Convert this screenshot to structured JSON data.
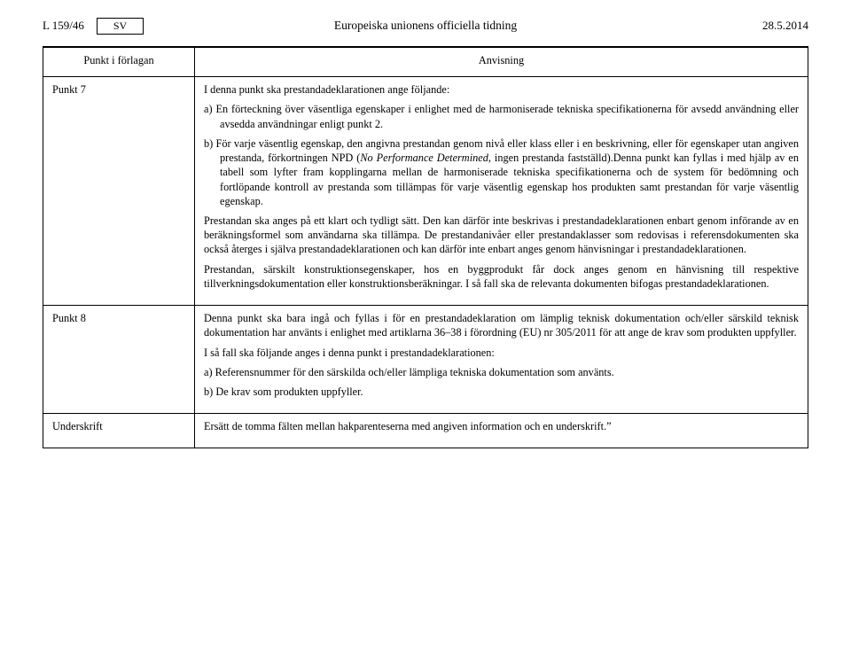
{
  "header": {
    "page_ref": "L 159/46",
    "lang": "SV",
    "journal": "Europeiska unionens officiella tidning",
    "date": "28.5.2014"
  },
  "table": {
    "col1_header": "Punkt i förlagan",
    "col2_header": "Anvisning",
    "rows": [
      {
        "label": "Punkt 7",
        "paras": [
          {
            "cls": "para",
            "text": "I denna punkt ska prestandadeklarationen ange följande:"
          },
          {
            "cls": "para hang",
            "text": "a) En förteckning över väsentliga egenskaper i enlighet med de harmoniserade tekniska specifikationerna för avsedd användning eller avsedda användningar enligt punkt 2."
          },
          {
            "cls": "para hang",
            "html": "b) För varje väsentlig egenskap, den angivna prestandan genom nivå eller klass eller i en beskrivning, eller för egenskaper utan angiven prestanda, förkortningen NPD (<span class=\"italic\">No Performance Determined</span>, ingen prestanda fastställd).Denna punkt kan fyllas i med hjälp av en tabell som lyfter fram kopplingarna mellan de harmoniserade tekniska specifikationerna och de system för bedömning och fortlöpande kontroll av prestanda som tillämpas för varje väsentlig egenskap hos produkten samt prestandan för varje väsentlig egenskap."
          },
          {
            "cls": "para",
            "text": "Prestandan ska anges på ett klart och tydligt sätt. Den kan därför inte beskrivas i prestandadeklarationen enbart genom införande av en beräkningsformel som användarna ska tillämpa. De prestandanivåer eller prestandaklasser som redovisas i referensdokumenten ska också återges i själva prestandadeklarationen och kan därför inte enbart anges genom hänvisningar i prestandadeklarationen."
          },
          {
            "cls": "para",
            "text": "Prestandan, särskilt konstruktionsegenskaper, hos en byggprodukt får dock anges genom en hänvisning till respektive tillverkningsdokumentation eller konstruktionsberäkningar. I så fall ska de relevanta dokumenten bifogas prestandadeklarationen."
          }
        ]
      },
      {
        "label": "Punkt 8",
        "paras": [
          {
            "cls": "para",
            "text": "Denna punkt ska bara ingå och fyllas i för en prestandadeklaration om lämplig teknisk dokumentation och/eller särskild teknisk dokumentation har använts i enlighet med artiklarna 36–38 i förordning (EU) nr 305/2011 för att ange de krav som produkten uppfyller."
          },
          {
            "cls": "para",
            "text": "I så fall ska följande anges i denna punkt i prestandadeklarationen:"
          },
          {
            "cls": "para hang",
            "text": "a) Referensnummer för den särskilda och/eller lämpliga tekniska dokumentation som använts."
          },
          {
            "cls": "para hang",
            "text": "b) De krav som produkten uppfyller."
          }
        ]
      },
      {
        "label": "Underskrift",
        "paras": [
          {
            "cls": "para",
            "text": "Ersätt de tomma fälten mellan hakparenteserna med angiven information och en underskrift.”"
          }
        ]
      }
    ]
  }
}
